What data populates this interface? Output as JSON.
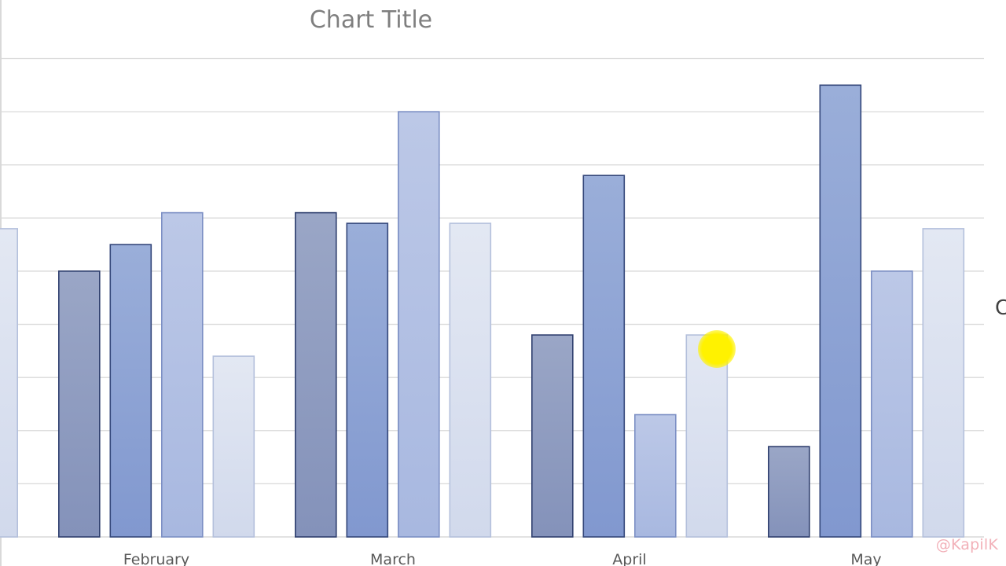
{
  "chart_data": {
    "type": "bar",
    "title": "Chart Title",
    "categories": [
      "",
      "February",
      "March",
      "April",
      "May"
    ],
    "series": [
      {
        "values": [
          null,
          5.0,
          6.1,
          3.8,
          1.7
        ]
      },
      {
        "values": [
          null,
          5.5,
          5.9,
          6.8,
          8.5
        ]
      },
      {
        "values": [
          null,
          6.1,
          8.0,
          2.3,
          5.0
        ]
      },
      {
        "values": [
          5.8,
          3.4,
          5.9,
          3.8,
          5.8
        ]
      }
    ],
    "ylim": [
      0,
      9
    ],
    "grid": true,
    "legend": "none",
    "colors": {
      "bar_fills": [
        [
          "#9aa6c6",
          "#8492ba"
        ],
        [
          "#9aaed9",
          "#8198cf"
        ],
        [
          "#bcc8e7",
          "#a8b8e0"
        ],
        [
          "#e3e8f3",
          "#d1d9ec"
        ]
      ],
      "bar_strokes": [
        "#2f3f6e",
        "#34477a",
        "#7c8fc4",
        "#b4c0dc"
      ],
      "gridline": "#d9d9d9",
      "title": "#7f7f7f",
      "category_label": "#595959"
    }
  },
  "watermark": "@KapilK",
  "edge_glyph": "C"
}
